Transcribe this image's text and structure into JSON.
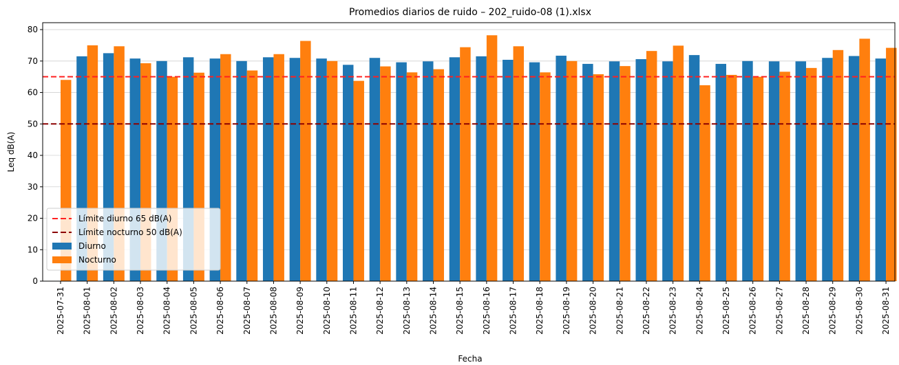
{
  "chart_data": {
    "type": "bar",
    "title": "Promedios diarios de ruido – 202_ruido-08 (1).xlsx",
    "x_label": "Fecha",
    "y_label": "Leq dB(A)",
    "categories": [
      "2025-07-31",
      "2025-08-01",
      "2025-08-02",
      "2025-08-03",
      "2025-08-04",
      "2025-08-05",
      "2025-08-06",
      "2025-08-07",
      "2025-08-08",
      "2025-08-09",
      "2025-08-10",
      "2025-08-11",
      "2025-08-12",
      "2025-08-13",
      "2025-08-14",
      "2025-08-15",
      "2025-08-16",
      "2025-08-17",
      "2025-08-18",
      "2025-08-19",
      "2025-08-20",
      "2025-08-21",
      "2025-08-22",
      "2025-08-23",
      "2025-08-24",
      "2025-08-25",
      "2025-08-26",
      "2025-08-27",
      "2025-08-28",
      "2025-08-29",
      "2025-08-30",
      "2025-08-31"
    ],
    "series": [
      {
        "name": "Diurno",
        "color": "#1f77b4",
        "values": [
          null,
          71.5,
          72.5,
          70.8,
          70,
          71.2,
          70.8,
          70,
          71.2,
          71,
          70.8,
          68.8,
          71,
          69.6,
          69.9,
          71.2,
          71.5,
          70.4,
          69.6,
          71.7,
          69.1,
          69.9,
          70.6,
          69.9,
          71.9,
          69.1,
          70,
          69.9,
          69.9,
          71,
          71.6,
          70.8
        ]
      },
      {
        "name": "Nocturno",
        "color": "#ff7f0e",
        "values": [
          64,
          75,
          74.7,
          69.3,
          65,
          66.3,
          72.2,
          67,
          72.2,
          76.4,
          70,
          63.7,
          68.3,
          66.4,
          67.4,
          74.4,
          78.2,
          74.7,
          66.4,
          70,
          65.8,
          68.4,
          73.2,
          74.9,
          62.3,
          65.6,
          65,
          66.6,
          67.8,
          73.5,
          77.1,
          74.2
        ]
      }
    ],
    "hlines": [
      {
        "value": 65,
        "label": "Límite diurno 65 dB(A)",
        "color": "#ff2020"
      },
      {
        "value": 50,
        "label": "Límite nocturno 50 dB(A)",
        "color": "#8b0000"
      }
    ],
    "ylim": [
      0,
      82.2
    ],
    "yticks": [
      0,
      10,
      20,
      30,
      40,
      50,
      60,
      70,
      80
    ],
    "grid": true,
    "legend": "lower left"
  }
}
